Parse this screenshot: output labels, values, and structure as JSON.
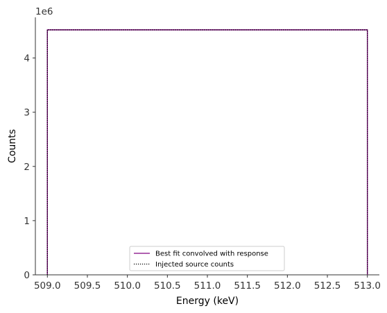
{
  "chart_data": {
    "type": "line",
    "title": "",
    "xlabel": "Energy (keV)",
    "ylabel": "Counts",
    "xlim": [
      508.85,
      513.15
    ],
    "ylim": [
      0,
      4750000
    ],
    "x_ticks": [
      509.0,
      509.5,
      510.0,
      510.5,
      511.0,
      511.5,
      512.0,
      512.5,
      513.0
    ],
    "x_tick_labels": [
      "509.0",
      "509.5",
      "510.0",
      "510.5",
      "511.0",
      "511.5",
      "512.0",
      "512.5",
      "513.0"
    ],
    "y_ticks": [
      0,
      1000000,
      2000000,
      3000000,
      4000000
    ],
    "y_tick_labels": [
      "0",
      "1",
      "2",
      "3",
      "4"
    ],
    "y_offset_text": "1e6",
    "grid": false,
    "legend_position": "lower center",
    "series": [
      {
        "name": "Best fit convolved with response",
        "color": "#800080",
        "style": "solid",
        "x": [
          509.0,
          509.0,
          513.0,
          513.0
        ],
        "y": [
          0,
          4520000,
          4520000,
          0
        ]
      },
      {
        "name": "Injected source counts",
        "color": "#000000",
        "style": "dotted",
        "x": [
          509.0,
          509.0,
          513.0,
          513.0
        ],
        "y": [
          0,
          4520000,
          4520000,
          0
        ]
      }
    ]
  }
}
